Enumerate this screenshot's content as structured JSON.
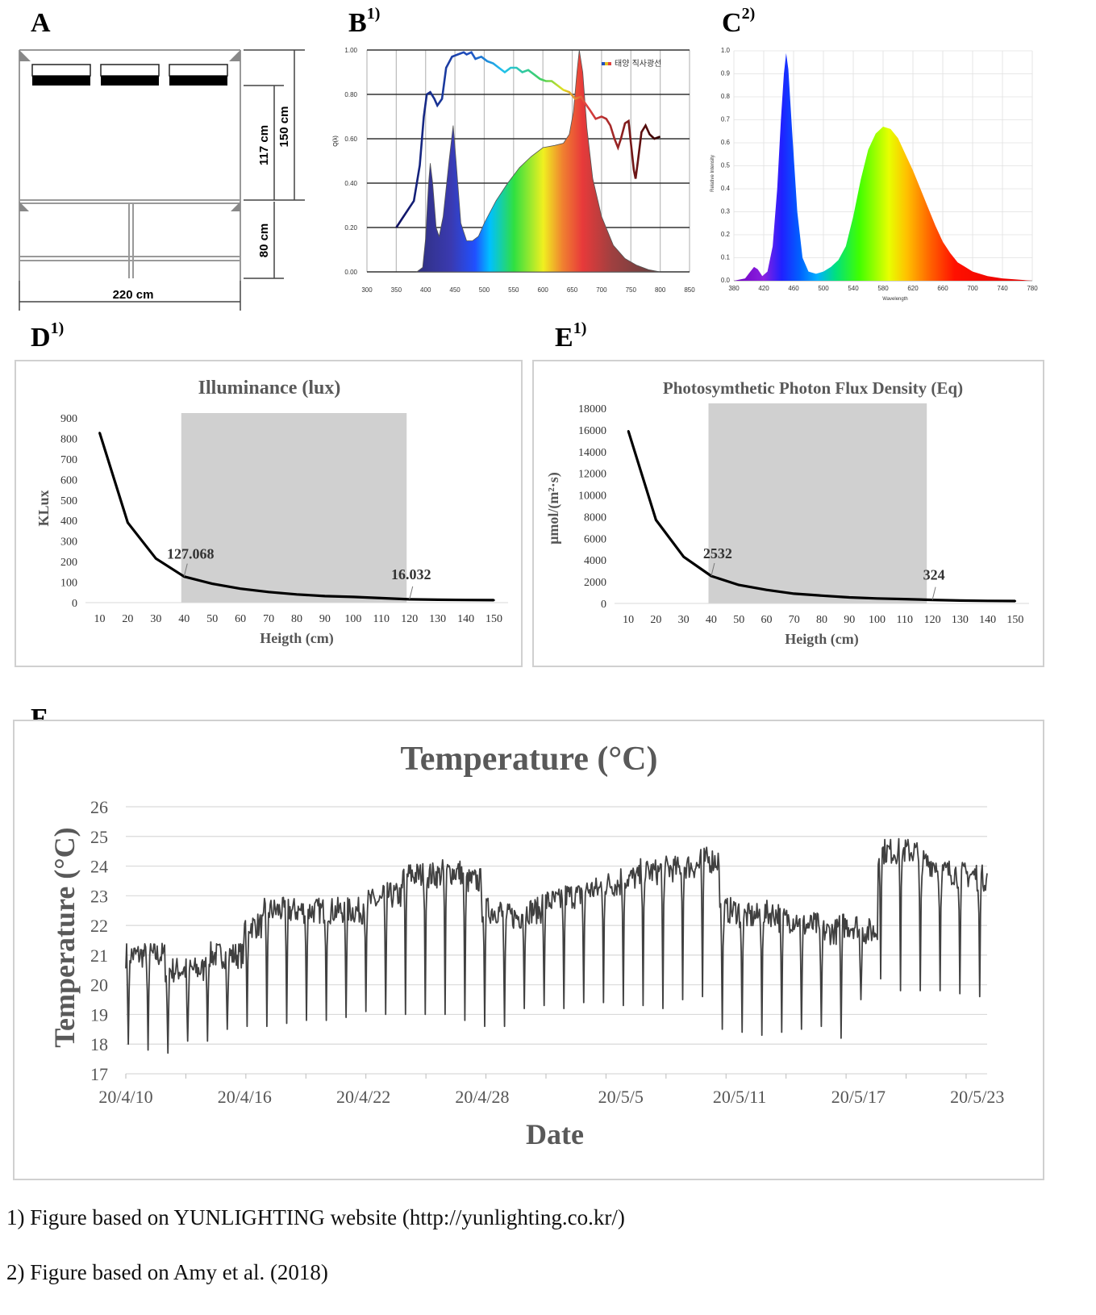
{
  "panels": {
    "a": {
      "label": "A",
      "sup": ""
    },
    "b": {
      "label": "B",
      "sup": "1)"
    },
    "c": {
      "label": "C",
      "sup": "2)"
    },
    "d": {
      "label": "D",
      "sup": "1)"
    },
    "e": {
      "label": "E",
      "sup": "1)"
    },
    "f": {
      "label": "F",
      "sup": ""
    }
  },
  "diagram_a": {
    "dim_117": "117 cm",
    "dim_150": "150 cm",
    "dim_80": "80 cm",
    "dim_220": "220 cm"
  },
  "spectrum_b": {
    "legend": "태양 직사광선",
    "ylabel": "Q(λ)",
    "x_ticks": [
      "300",
      "350",
      "400",
      "450",
      "500",
      "550",
      "600",
      "650",
      "700",
      "750",
      "800",
      "850"
    ],
    "y_ticks": [
      "0.00",
      "0.20",
      "0.40",
      "0.60",
      "0.80",
      "1.00"
    ]
  },
  "spectrum_c": {
    "xlabel": "Wavelength",
    "ylabel": "Relative Intensity",
    "x_ticks": [
      "380",
      "420",
      "460",
      "500",
      "540",
      "580",
      "620",
      "660",
      "700",
      "740",
      "780"
    ],
    "y_ticks": [
      "0.0",
      "0.1",
      "0.2",
      "0.3",
      "0.4",
      "0.5",
      "0.6",
      "0.7",
      "0.8",
      "0.9",
      "1.0"
    ]
  },
  "chart_data": [
    {
      "id": "illuminance",
      "type": "line",
      "title": "Illuminance (lux)",
      "xlabel": "Heigth (cm)",
      "ylabel": "KLux",
      "x": [
        10,
        20,
        30,
        40,
        50,
        60,
        70,
        80,
        90,
        100,
        110,
        120,
        130,
        140,
        150
      ],
      "values": [
        828,
        390,
        215,
        127.068,
        92,
        68,
        52,
        40,
        32,
        28,
        22,
        16.032,
        14,
        13,
        12
      ],
      "ylim": [
        0,
        900
      ],
      "y_ticks": [
        0,
        100,
        200,
        300,
        400,
        500,
        600,
        700,
        800,
        900
      ],
      "shaded_x": [
        39,
        119
      ],
      "annotations": [
        {
          "x": 40,
          "label": "127.068"
        },
        {
          "x": 120,
          "label": "16.032"
        }
      ]
    },
    {
      "id": "ppfd",
      "type": "line",
      "title": "Photosymthetic  Photon  Flux  Density  (Eq)",
      "xlabel": "Heigth (cm)",
      "ylabel": "μmol/(m²·s)",
      "x": [
        10,
        20,
        30,
        40,
        50,
        60,
        70,
        80,
        90,
        100,
        110,
        120,
        130,
        140,
        150
      ],
      "values": [
        15900,
        7700,
        4300,
        2532,
        1700,
        1250,
        900,
        720,
        560,
        460,
        400,
        324,
        270,
        240,
        220
      ],
      "ylim": [
        0,
        18000
      ],
      "y_ticks": [
        0,
        2000,
        4000,
        6000,
        8000,
        10000,
        12000,
        14000,
        16000,
        18000
      ],
      "shaded_x": [
        39,
        118
      ],
      "annotations": [
        {
          "x": 40,
          "label": "2532"
        },
        {
          "x": 120,
          "label": "324"
        }
      ]
    },
    {
      "id": "temperature",
      "type": "line",
      "title": "Temperature (°C)",
      "xlabel": "Date",
      "ylabel": "Temperature  (°C)",
      "ylim": [
        17,
        26
      ],
      "y_ticks": [
        17,
        18,
        19,
        20,
        21,
        22,
        23,
        24,
        25,
        26
      ],
      "x_tick_labels": [
        "20/4/10",
        "20/4/16",
        "20/4/22",
        "20/4/28",
        "20/5/5",
        "20/5/11",
        "20/5/17",
        "20/5/23"
      ],
      "x_day_range": [
        0,
        43.5
      ],
      "daily_baseline": [
        21.0,
        21.0,
        20.5,
        20.5,
        21.0,
        21.0,
        22.0,
        22.5,
        22.5,
        22.5,
        22.5,
        22.5,
        22.8,
        23.0,
        23.7,
        23.7,
        23.8,
        23.5,
        22.5,
        22.3,
        22.5,
        22.8,
        23.0,
        23.2,
        23.4,
        23.6,
        23.8,
        23.9,
        24.0,
        24.2,
        22.5,
        22.3,
        22.4,
        22.2,
        22.0,
        21.8,
        22.0,
        21.8,
        24.5,
        24.5,
        24.1,
        23.8,
        23.7,
        23.6
      ],
      "daily_min": [
        18.0,
        17.8,
        17.7,
        18.1,
        18.1,
        18.5,
        18.6,
        18.6,
        18.7,
        18.8,
        18.8,
        18.9,
        19.1,
        19.0,
        19.0,
        19.0,
        19.0,
        18.8,
        18.6,
        18.6,
        19.2,
        19.3,
        19.2,
        19.4,
        19.4,
        19.3,
        19.3,
        19.2,
        19.5,
        19.6,
        18.5,
        18.4,
        18.3,
        18.4,
        18.5,
        18.6,
        18.2,
        19.5,
        20.2,
        19.8,
        19.8,
        19.8,
        19.7,
        19.6
      ]
    }
  ],
  "footnotes": {
    "note1": "1) Figure based on YUNLIGHTING  website (http://yunlighting.co.kr/)",
    "note2": "2) Figure based on Amy et al. (2018)"
  }
}
